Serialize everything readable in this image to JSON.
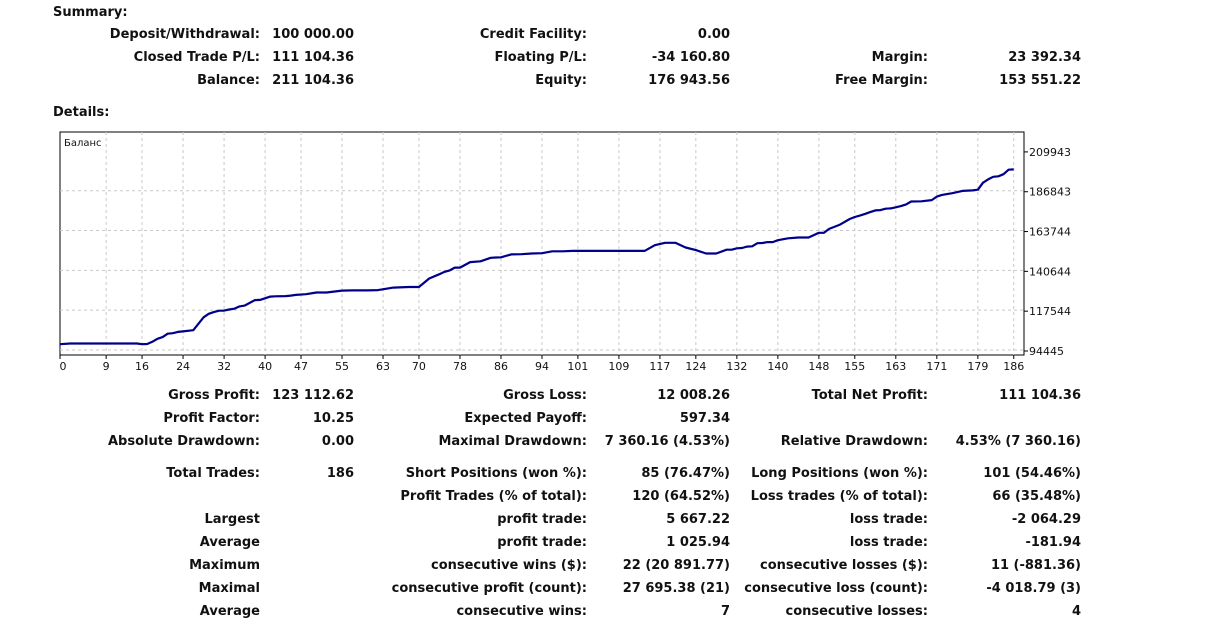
{
  "summary": {
    "title": "Summary:",
    "deposit_label": "Deposit/Withdrawal:",
    "deposit_value": "100 000.00",
    "credit_label": "Credit Facility:",
    "credit_value": "0.00",
    "closed_pl_label": "Closed Trade P/L:",
    "closed_pl_value": "111 104.36",
    "floating_pl_label": "Floating P/L:",
    "floating_pl_value": "-34 160.80",
    "margin_label": "Margin:",
    "margin_value": "23 392.34",
    "balance_label": "Balance:",
    "balance_value": "211 104.36",
    "equity_label": "Equity:",
    "equity_value": "176 943.56",
    "free_margin_label": "Free Margin:",
    "free_margin_value": "153 551.22"
  },
  "details": {
    "title": "Details:"
  },
  "chart_data": {
    "type": "line",
    "title": "Баланс",
    "x_tick_labels": [
      "0",
      "9",
      "16",
      "24",
      "32",
      "40",
      "47",
      "55",
      "63",
      "70",
      "78",
      "86",
      "94",
      "101",
      "109",
      "117",
      "124",
      "132",
      "140",
      "148",
      "155",
      "163",
      "171",
      "179",
      "186"
    ],
    "y_tick_labels": [
      "209943",
      "186843",
      "163744",
      "140644",
      "117544",
      "94445"
    ],
    "xlim": [
      0,
      188
    ],
    "ylim": [
      94445,
      221493
    ],
    "grid": true,
    "series": [
      {
        "color": "#00008b",
        "x": [
          0,
          2,
          4,
          6,
          8,
          10,
          12,
          14,
          15,
          16,
          17,
          18,
          19,
          20,
          21,
          22,
          23,
          24,
          26,
          28,
          29,
          30,
          31,
          32,
          33,
          34,
          35,
          36,
          38,
          39,
          40,
          41,
          42,
          44,
          45,
          46,
          48,
          50,
          52,
          55,
          57,
          60,
          62,
          65,
          68,
          70,
          72,
          74,
          75,
          76,
          77,
          78,
          80,
          82,
          84,
          85,
          86,
          88,
          90,
          92,
          94,
          96,
          98,
          100,
          102,
          104,
          106,
          108,
          110,
          112,
          114,
          116,
          118,
          120,
          122,
          124,
          126,
          128,
          130,
          131,
          132,
          133,
          134,
          135,
          136,
          137,
          138,
          139,
          140,
          142,
          144,
          146,
          148,
          149,
          150,
          152,
          154,
          155,
          156,
          157,
          158,
          159,
          160,
          161,
          162,
          163,
          164,
          165,
          166,
          168,
          170,
          171,
          172,
          174,
          176,
          178,
          179,
          180,
          181,
          182,
          183,
          184,
          185,
          186
        ],
        "y": [
          98400,
          98800,
          98800,
          98800,
          98800,
          98800,
          98800,
          98800,
          98800,
          98400,
          98500,
          99800,
          101500,
          102500,
          104500,
          104800,
          105500,
          105800,
          106500,
          114000,
          116000,
          117000,
          117800,
          117900,
          118500,
          119000,
          120300,
          120800,
          124000,
          124100,
          125000,
          126000,
          126200,
          126300,
          126600,
          127000,
          127400,
          128400,
          128400,
          129500,
          129600,
          129600,
          129800,
          131200,
          131600,
          131600,
          136500,
          139000,
          140400,
          141200,
          142800,
          142800,
          146000,
          146500,
          148500,
          148700,
          148800,
          150500,
          150600,
          151000,
          151200,
          152300,
          152300,
          152500,
          152500,
          152500,
          152500,
          152500,
          152500,
          152500,
          152500,
          155800,
          157200,
          157200,
          154500,
          153000,
          151000,
          151000,
          153200,
          153200,
          154000,
          154200,
          155000,
          155200,
          157000,
          157100,
          157600,
          157600,
          158700,
          159800,
          160300,
          160300,
          163000,
          163000,
          165300,
          167600,
          171000,
          172200,
          173000,
          174000,
          175000,
          176000,
          176200,
          177000,
          177200,
          177800,
          178500,
          179500,
          181200,
          181300,
          182000,
          184000,
          185000,
          186000,
          187300,
          187600,
          188000,
          192100,
          194000,
          195500,
          195800,
          197000,
          199600,
          199800
        ]
      }
    ]
  },
  "stats": {
    "gross_profit_label": "Gross Profit:",
    "gross_profit_value": "123 112.62",
    "gross_loss_label": "Gross Loss:",
    "gross_loss_value": "12 008.26",
    "total_net_profit_label": "Total Net Profit:",
    "total_net_profit_value": "111 104.36",
    "profit_factor_label": "Profit Factor:",
    "profit_factor_value": "10.25",
    "expected_payoff_label": "Expected Payoff:",
    "expected_payoff_value": "597.34",
    "absolute_drawdown_label": "Absolute Drawdown:",
    "absolute_drawdown_value": "0.00",
    "maximal_drawdown_label": "Maximal Drawdown:",
    "maximal_drawdown_value": "7 360.16 (4.53%)",
    "relative_drawdown_label": "Relative Drawdown:",
    "relative_drawdown_value": "4.53% (7 360.16)",
    "total_trades_label": "Total Trades:",
    "total_trades_value": "186",
    "short_positions_label": "Short Positions (won %):",
    "short_positions_value": "85 (76.47%)",
    "long_positions_label": "Long Positions (won %):",
    "long_positions_value": "101 (54.46%)",
    "profit_trades_label": "Profit Trades (% of total):",
    "profit_trades_value": "120 (64.52%)",
    "loss_trades_label": "Loss trades (% of total):",
    "loss_trades_value": "66 (35.48%)",
    "largest_label": "Largest",
    "largest_profit_label": "profit trade:",
    "largest_profit_value": "5 667.22",
    "largest_loss_label": "loss trade:",
    "largest_loss_value": "-2 064.29",
    "average_label": "Average",
    "average_profit_label": "profit trade:",
    "average_profit_value": "1 025.94",
    "average_loss_label": "loss trade:",
    "average_loss_value": "-181.94",
    "maximum_label": "Maximum",
    "max_consec_wins_label": "consecutive wins ($):",
    "max_consec_wins_value": "22 (20 891.77)",
    "max_consec_losses_label": "consecutive losses ($):",
    "max_consec_losses_value": "11 (-881.36)",
    "maximal_label": "Maximal",
    "maximal_consec_profit_label": "consecutive profit (count):",
    "maximal_consec_profit_value": "27 695.38 (21)",
    "maximal_consec_loss_label": "consecutive loss (count):",
    "maximal_consec_loss_value": "-4 018.79 (3)",
    "average2_label": "Average",
    "avg_consec_wins_label": "consecutive wins:",
    "avg_consec_wins_value": "7",
    "avg_consec_losses_label": "consecutive losses:",
    "avg_consec_losses_value": "4"
  }
}
